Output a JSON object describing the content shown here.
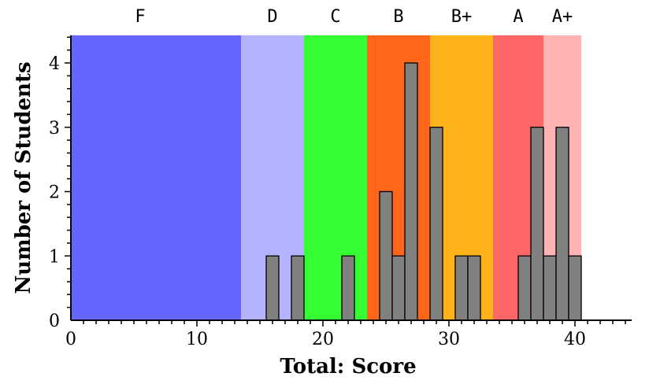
{
  "chart_data": {
    "type": "bar",
    "title": "",
    "xlabel": "Total: Score",
    "ylabel": "Number of Students",
    "xlim": [
      0,
      44.5
    ],
    "ylim": [
      0,
      4.43
    ],
    "xticks": [
      0,
      10,
      20,
      30,
      40
    ],
    "yticks": [
      0,
      1,
      2,
      3,
      4
    ],
    "grid": false,
    "bar_width": 1,
    "x": [
      16,
      18,
      22,
      25,
      26,
      27,
      29,
      31,
      32,
      36,
      37,
      38,
      39,
      40
    ],
    "values": [
      1,
      1,
      1,
      2,
      1,
      4,
      3,
      1,
      1,
      1,
      3,
      1,
      3,
      1
    ],
    "bar_color": "#808080",
    "grade_bands": [
      {
        "label": "F",
        "from": 0,
        "to": 13.5,
        "color": "#6666ff"
      },
      {
        "label": "D",
        "from": 13.5,
        "to": 18.5,
        "color": "#b3b3ff"
      },
      {
        "label": "C",
        "from": 18.5,
        "to": 23.5,
        "color": "#33ff33"
      },
      {
        "label": "B",
        "from": 23.5,
        "to": 28.5,
        "color": "#ff661a"
      },
      {
        "label": "B+",
        "from": 28.5,
        "to": 33.5,
        "color": "#ffb31a"
      },
      {
        "label": "A",
        "from": 33.5,
        "to": 37.5,
        "color": "#ff6666"
      },
      {
        "label": "A+",
        "from": 37.5,
        "to": 40.5,
        "color": "#ffb3b3"
      }
    ]
  }
}
